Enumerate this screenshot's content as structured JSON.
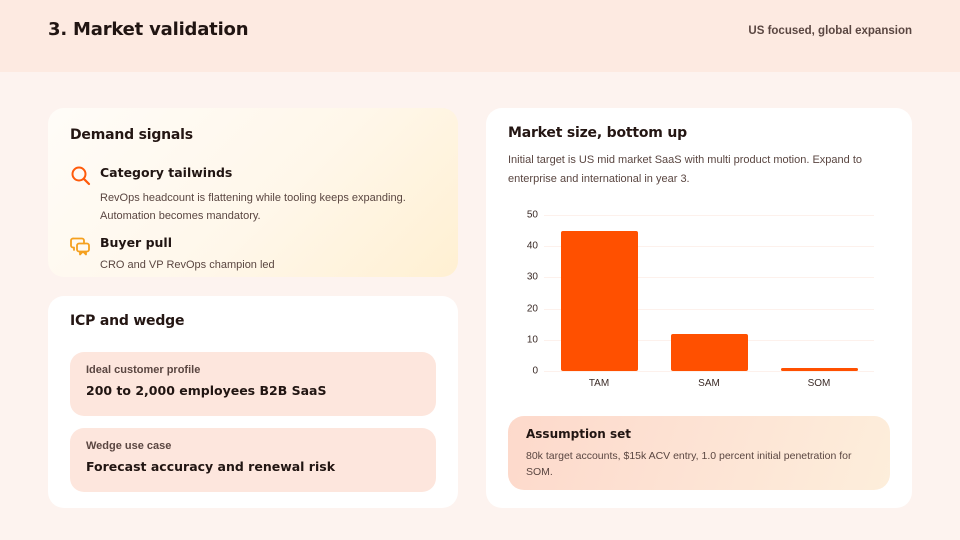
{
  "header": {
    "title": "3. Market validation",
    "subtitle": "US focused, global expansion"
  },
  "demand_signals": {
    "title": "Demand signals",
    "items": [
      {
        "icon": "search-icon",
        "title": "Category tailwinds",
        "body": "RevOps headcount is flattening while tooling keeps expanding. Automation becomes mandatory."
      },
      {
        "icon": "chat-bubbles-icon",
        "title": "Buyer pull",
        "body": "CRO and VP RevOps champion led"
      }
    ]
  },
  "icp": {
    "title": "ICP and wedge",
    "items": [
      {
        "label": "Ideal customer profile",
        "value": "200 to 2,000 employees B2B SaaS"
      },
      {
        "label": "Wedge use case",
        "value": "Forecast accuracy and renewal risk"
      }
    ]
  },
  "market": {
    "title": "Market size, bottom up",
    "description": "Initial target is US mid market SaaS with multi product motion. Expand to enterprise and international in year 3.",
    "assumption": {
      "title": "Assumption set",
      "body": "80k target accounts, $15k ACV entry, 1.0 percent initial penetration for SOM."
    }
  },
  "colors": {
    "accent": "#ff5000",
    "icon_orange": "#ff5a0a",
    "icon_amber": "#f5a01e",
    "header_bg": "#fdeae1",
    "page_bg": "#fdf3ef",
    "pill_bg": "#fde6dd"
  },
  "chart_data": {
    "type": "bar",
    "title": "",
    "categories": [
      "TAM",
      "SAM",
      "SOM"
    ],
    "values": [
      45,
      12,
      1
    ],
    "xlabel": "",
    "ylabel": "",
    "ylim": [
      0,
      50
    ],
    "yticks": [
      "0",
      "10",
      "20",
      "30",
      "40",
      "50"
    ],
    "grid": true,
    "legend": "none",
    "bar_color": "#ff5000"
  }
}
